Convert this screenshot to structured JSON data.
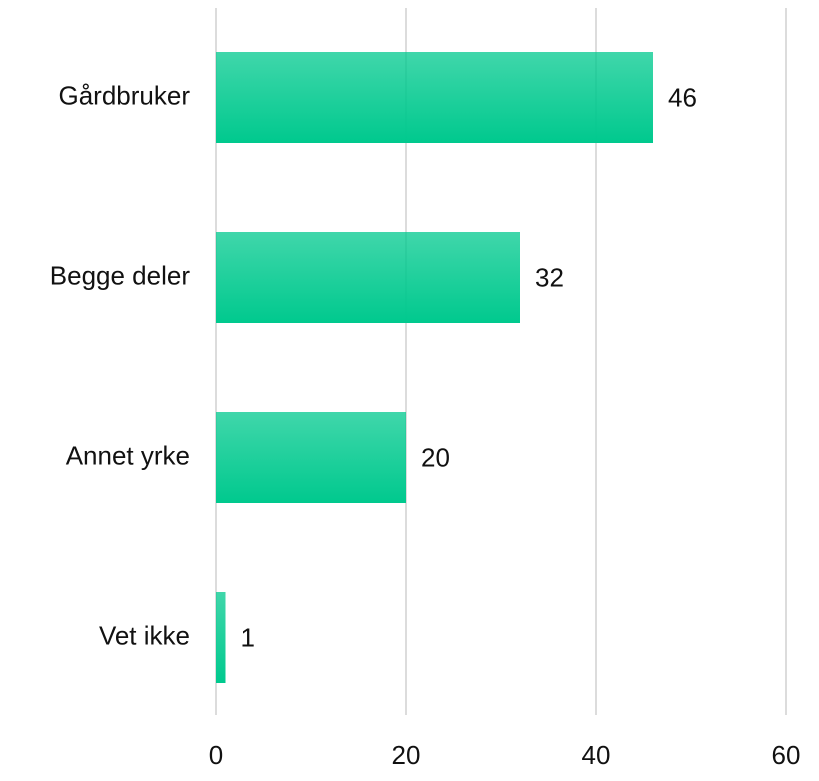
{
  "chart_data": {
    "type": "bar",
    "orientation": "horizontal",
    "categories": [
      "Gårdbruker",
      "Begge deler",
      "Annet yrke",
      "Vet ikke"
    ],
    "values": [
      46,
      32,
      20,
      1
    ],
    "color": "#00c98e",
    "xlim": [
      0,
      60
    ],
    "xticks": [
      0,
      20,
      40,
      60
    ],
    "grid": true
  }
}
